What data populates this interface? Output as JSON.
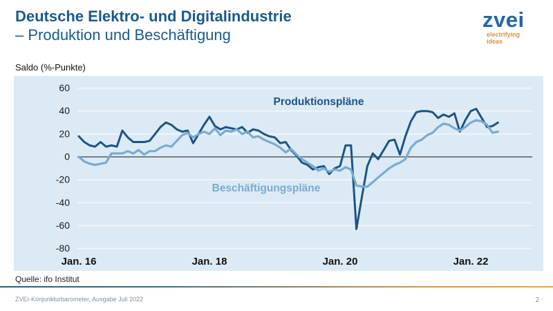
{
  "header": {
    "title_line1": "Deutsche Elektro- und Digitalindustrie",
    "title_line2": "– Produktion und Beschäftigung"
  },
  "logo": {
    "wordmark": "zvei",
    "tagline_line1": "electrifying",
    "tagline_line2": "ideas"
  },
  "axis_unit_label": "Saldo (%-Punkte)",
  "chart_data": {
    "type": "line",
    "title": "",
    "ylabel": "Saldo (%-Punkte)",
    "ylim": [
      -80,
      60
    ],
    "yticks": [
      60,
      40,
      20,
      0,
      -20,
      -40,
      -60,
      -80
    ],
    "xtick_labels": [
      "Jan. 16",
      "Jan. 18",
      "Jan. 20",
      "Jan. 22"
    ],
    "x_start": "2016-01",
    "x_end": "2022-06",
    "frequency": "monthly",
    "grid": true,
    "legend_position": "inline-labels",
    "background": "#dceaf5",
    "gridline_color": "#f3f8fc",
    "zero_line_color": "#3f3f3f",
    "series": [
      {
        "name": "Produktionspläne",
        "color": "#1d5384",
        "stroke_width": 3,
        "values": [
          18,
          13,
          10,
          9,
          13,
          9,
          10,
          9,
          23,
          17,
          13,
          13,
          13,
          14,
          20,
          26,
          30,
          28,
          24,
          22,
          23,
          12,
          20,
          28,
          35,
          27,
          24,
          26,
          25,
          24,
          26,
          21,
          24,
          23,
          20,
          18,
          17,
          12,
          13,
          6,
          1,
          -5,
          -7,
          -11,
          -9,
          -8,
          -15,
          -10,
          -8,
          10,
          10,
          -63,
          -35,
          -8,
          3,
          -2,
          6,
          14,
          15,
          2,
          18,
          31,
          39,
          40,
          40,
          39,
          34,
          37,
          35,
          38,
          22,
          32,
          40,
          42,
          34,
          26,
          27,
          30
        ]
      },
      {
        "name": "Beschäftigungspläne",
        "color": "#78abd0",
        "stroke_width": 3.2,
        "values": [
          0,
          -4,
          -6,
          -7,
          -6,
          -5,
          3,
          3,
          3,
          5,
          3,
          6,
          2,
          5,
          5,
          8,
          10,
          9,
          14,
          19,
          21,
          17,
          20,
          22,
          20,
          25,
          19,
          23,
          22,
          24,
          20,
          22,
          17,
          18,
          15,
          13,
          11,
          8,
          4,
          7,
          2,
          -2,
          -5,
          -8,
          -12,
          -10,
          -13,
          -11,
          -12,
          -9,
          -11,
          -25,
          -26,
          -26,
          -22,
          -18,
          -14,
          -10,
          -7,
          -5,
          -2,
          8,
          13,
          15,
          19,
          21,
          26,
          29,
          28,
          25,
          23,
          26,
          30,
          32,
          31,
          28,
          21,
          22
        ]
      }
    ]
  },
  "source_note": "Quelle: ifo Institut",
  "footer": {
    "caption": "ZVEI-Konjunkturbarometer, Ausgabe Juli 2022",
    "page_number": "2"
  },
  "colors": {
    "title": "#1a5a8c",
    "logo_blue": "#2066ad",
    "logo_orange": "#d9913f",
    "divider_left": "#2a5f76",
    "divider_right": "#eaa53d"
  }
}
